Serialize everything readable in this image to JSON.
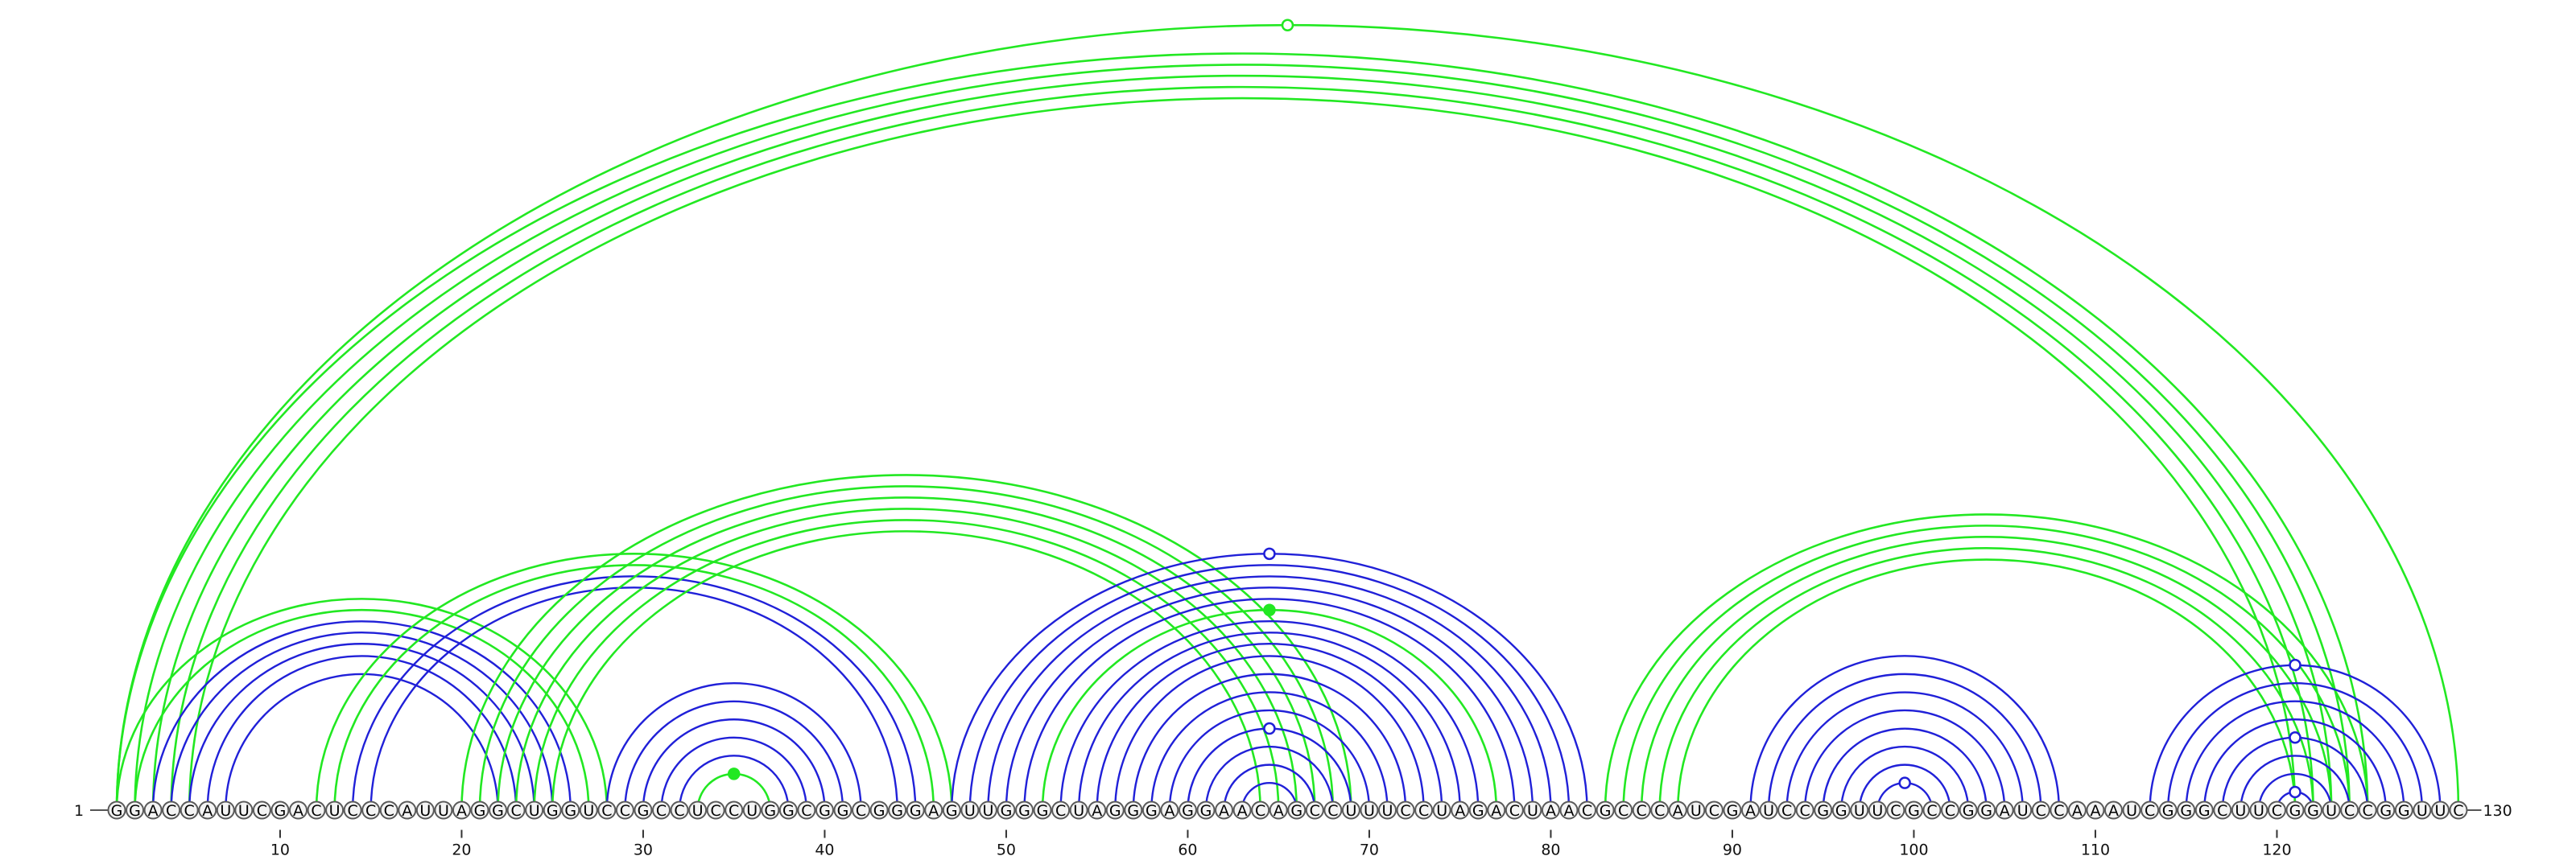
{
  "sequence": "GGACCAUUCGACUCCCAUUAGGCUGGUCCGCCUCCUGGCGGCGGGAGUUGGGCUAGGGAGGAACAGCCUUUCCUAGACUAACGCCCAUCGAUCCGGUUCGCCGGAUCCAAAUCGGGCUUCGGUCCGGUUC",
  "start_label": "1",
  "end_label": "130",
  "tick_labels": [
    "10",
    "20",
    "30",
    "40",
    "50",
    "60",
    "70",
    "80",
    "90",
    "100",
    "110",
    "120"
  ],
  "colors": {
    "green": "#22e822",
    "blue": "#2020d8"
  },
  "arcs": [
    {
      "i": 1,
      "j": 130,
      "color": "green"
    },
    {
      "i": 1,
      "j": 125,
      "color": "green"
    },
    {
      "i": 2,
      "j": 124,
      "color": "green"
    },
    {
      "i": 3,
      "j": 123,
      "color": "green"
    },
    {
      "i": 4,
      "j": 122,
      "color": "green"
    },
    {
      "i": 5,
      "j": 121,
      "color": "green"
    },
    {
      "i": 1,
      "j": 28,
      "color": "green"
    },
    {
      "i": 2,
      "j": 27,
      "color": "green"
    },
    {
      "i": 3,
      "j": 26,
      "color": "blue"
    },
    {
      "i": 4,
      "j": 25,
      "color": "blue"
    },
    {
      "i": 5,
      "j": 24,
      "color": "blue"
    },
    {
      "i": 6,
      "j": 23,
      "color": "blue"
    },
    {
      "i": 7,
      "j": 22,
      "color": "blue"
    },
    {
      "i": 12,
      "j": 47,
      "color": "green"
    },
    {
      "i": 13,
      "j": 46,
      "color": "green"
    },
    {
      "i": 14,
      "j": 45,
      "color": "blue"
    },
    {
      "i": 15,
      "j": 44,
      "color": "blue"
    },
    {
      "i": 20,
      "j": 69,
      "color": "green"
    },
    {
      "i": 21,
      "j": 68,
      "color": "green"
    },
    {
      "i": 22,
      "j": 67,
      "color": "green"
    },
    {
      "i": 23,
      "j": 66,
      "color": "green"
    },
    {
      "i": 24,
      "j": 65,
      "color": "green"
    },
    {
      "i": 25,
      "j": 64,
      "color": "green"
    },
    {
      "i": 28,
      "j": 42,
      "color": "blue"
    },
    {
      "i": 29,
      "j": 41,
      "color": "blue"
    },
    {
      "i": 30,
      "j": 40,
      "color": "blue"
    },
    {
      "i": 31,
      "j": 39,
      "color": "blue"
    },
    {
      "i": 32,
      "j": 38,
      "color": "blue"
    },
    {
      "i": 33,
      "j": 37,
      "color": "green"
    },
    {
      "i": 47,
      "j": 82,
      "color": "blue"
    },
    {
      "i": 48,
      "j": 81,
      "color": "blue"
    },
    {
      "i": 49,
      "j": 80,
      "color": "blue"
    },
    {
      "i": 50,
      "j": 79,
      "color": "blue"
    },
    {
      "i": 51,
      "j": 78,
      "color": "blue"
    },
    {
      "i": 52,
      "j": 77,
      "color": "green"
    },
    {
      "i": 53,
      "j": 76,
      "color": "blue"
    },
    {
      "i": 54,
      "j": 75,
      "color": "blue"
    },
    {
      "i": 55,
      "j": 74,
      "color": "blue"
    },
    {
      "i": 56,
      "j": 73,
      "color": "blue"
    },
    {
      "i": 57,
      "j": 72,
      "color": "blue"
    },
    {
      "i": 58,
      "j": 71,
      "color": "blue"
    },
    {
      "i": 59,
      "j": 70,
      "color": "blue"
    },
    {
      "i": 60,
      "j": 69,
      "color": "blue"
    },
    {
      "i": 61,
      "j": 68,
      "color": "blue"
    },
    {
      "i": 62,
      "j": 67,
      "color": "blue"
    },
    {
      "i": 63,
      "j": 66,
      "color": "blue"
    },
    {
      "i": 83,
      "j": 125,
      "color": "green"
    },
    {
      "i": 84,
      "j": 124,
      "color": "green"
    },
    {
      "i": 85,
      "j": 123,
      "color": "green"
    },
    {
      "i": 86,
      "j": 122,
      "color": "green"
    },
    {
      "i": 87,
      "j": 121,
      "color": "green"
    },
    {
      "i": 91,
      "j": 108,
      "color": "blue"
    },
    {
      "i": 92,
      "j": 107,
      "color": "blue"
    },
    {
      "i": 93,
      "j": 106,
      "color": "blue"
    },
    {
      "i": 94,
      "j": 105,
      "color": "blue"
    },
    {
      "i": 95,
      "j": 104,
      "color": "blue"
    },
    {
      "i": 96,
      "j": 103,
      "color": "blue"
    },
    {
      "i": 97,
      "j": 102,
      "color": "blue"
    },
    {
      "i": 98,
      "j": 101,
      "color": "blue"
    },
    {
      "i": 113,
      "j": 129,
      "color": "blue"
    },
    {
      "i": 114,
      "j": 128,
      "color": "blue"
    },
    {
      "i": 115,
      "j": 127,
      "color": "blue"
    },
    {
      "i": 116,
      "j": 126,
      "color": "blue"
    },
    {
      "i": 117,
      "j": 125,
      "color": "blue"
    },
    {
      "i": 118,
      "j": 124,
      "color": "blue"
    },
    {
      "i": 119,
      "j": 123,
      "color": "blue"
    },
    {
      "i": 120,
      "j": 122,
      "color": "blue"
    }
  ],
  "markers": [
    {
      "i": 1,
      "j": 130,
      "style": "open",
      "color": "green"
    },
    {
      "i": 33,
      "j": 37,
      "style": "filled",
      "color": "green"
    },
    {
      "i": 47,
      "j": 82,
      "style": "open",
      "color": "blue"
    },
    {
      "i": 52,
      "j": 77,
      "style": "filled",
      "color": "green"
    },
    {
      "i": 60,
      "j": 69,
      "style": "open",
      "color": "blue"
    },
    {
      "i": 98,
      "j": 101,
      "style": "open",
      "color": "blue"
    },
    {
      "i": 113,
      "j": 129,
      "style": "open",
      "color": "blue"
    },
    {
      "i": 117,
      "j": 125,
      "style": "open",
      "color": "blue"
    },
    {
      "i": 120,
      "j": 122,
      "style": "open",
      "color": "blue"
    }
  ]
}
